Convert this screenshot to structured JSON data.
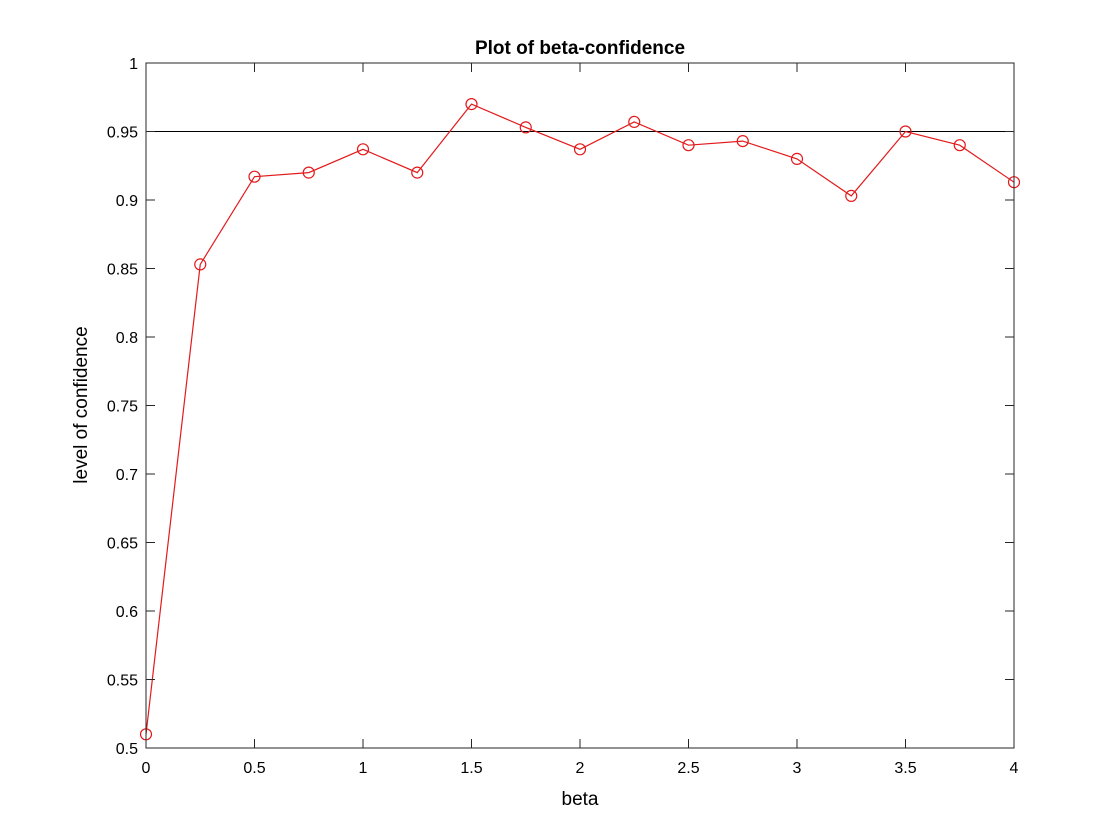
{
  "chart_data": {
    "type": "line",
    "title": "Plot of beta-confidence",
    "xlabel": "beta",
    "ylabel": "level of confidence",
    "xlim": [
      0,
      4
    ],
    "ylim": [
      0.5,
      1
    ],
    "xticks": [
      0,
      0.5,
      1,
      1.5,
      2,
      2.5,
      3,
      3.5,
      4
    ],
    "xtick_labels": [
      "0",
      "0.5",
      "1",
      "1.5",
      "2",
      "2.5",
      "3",
      "3.5",
      "4"
    ],
    "yticks": [
      0.5,
      0.55,
      0.6,
      0.65,
      0.7,
      0.75,
      0.8,
      0.85,
      0.9,
      0.95,
      1
    ],
    "ytick_labels": [
      "0.5",
      "0.55",
      "0.6",
      "0.65",
      "0.7",
      "0.75",
      "0.8",
      "0.85",
      "0.9",
      "0.95",
      "1"
    ],
    "grid": false,
    "reference_line": {
      "y": 0.95,
      "color": "#000000"
    },
    "series": [
      {
        "color": "#e31a1c",
        "marker": "circle",
        "x": [
          0,
          0.25,
          0.5,
          0.75,
          1,
          1.25,
          1.5,
          1.75,
          2,
          2.25,
          2.5,
          2.75,
          3,
          3.25,
          3.5,
          3.75,
          4
        ],
        "y": [
          0.51,
          0.853,
          0.917,
          0.92,
          0.937,
          0.92,
          0.97,
          0.953,
          0.937,
          0.957,
          0.94,
          0.943,
          0.93,
          0.903,
          0.95,
          0.94,
          0.913
        ]
      }
    ]
  }
}
